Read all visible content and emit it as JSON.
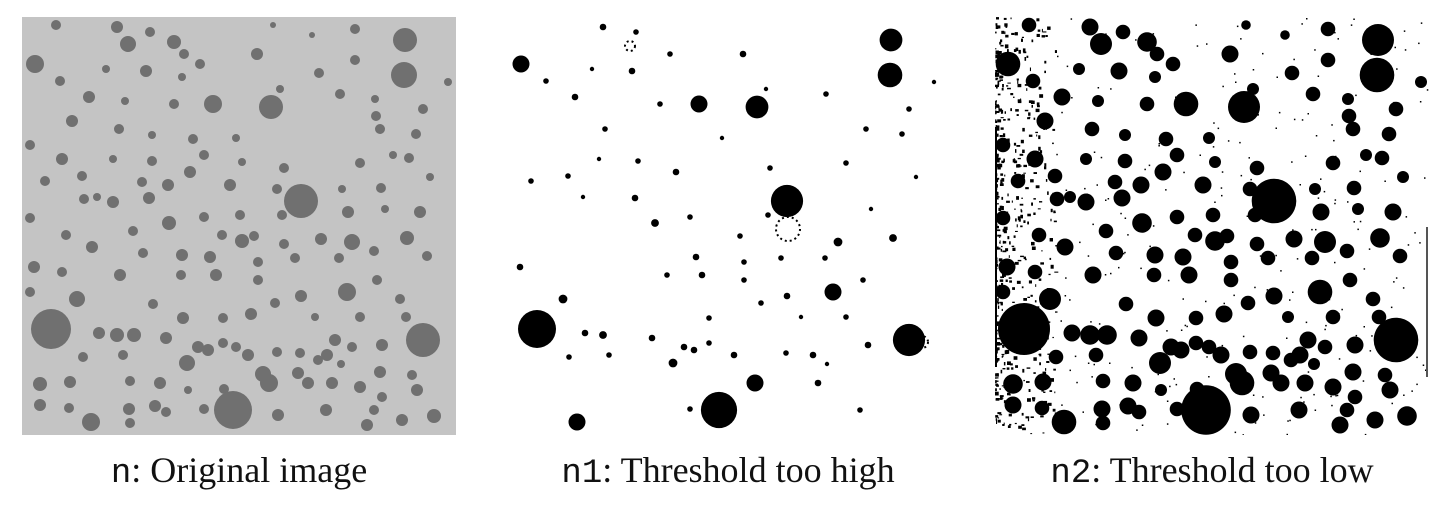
{
  "figure": {
    "panels": [
      {
        "id": "n",
        "code": "n",
        "desc": "Original image",
        "bg": "#c4c4c4",
        "blob": "#707070"
      },
      {
        "id": "n1",
        "code": "n1",
        "desc": "Threshold too high",
        "bg": "#ffffff",
        "blob": "#000000"
      },
      {
        "id": "n2",
        "code": "n2",
        "desc": "Threshold too low",
        "bg": "#ffffff",
        "blob": "#000000"
      }
    ]
  }
}
